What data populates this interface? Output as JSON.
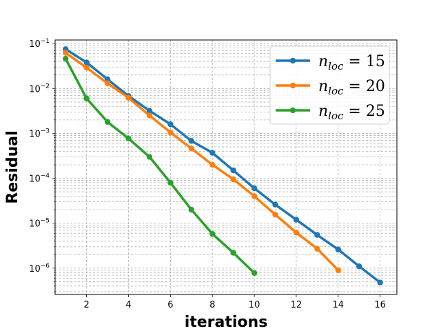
{
  "chart_data": {
    "type": "line",
    "xlabel": "iterations",
    "ylabel": "Residual",
    "xlim": [
      0.5,
      16.8
    ],
    "ylim": [
      2.6e-07,
      0.12
    ],
    "yscale": "log",
    "grid": true,
    "legend_position": "top-right",
    "xticks": [
      2,
      4,
      6,
      8,
      10,
      12,
      14,
      16
    ],
    "xtick_labels": [
      "2",
      "4",
      "6",
      "8",
      "10",
      "12",
      "14",
      "16"
    ],
    "yticks": [
      1e-06,
      1e-05,
      0.0001,
      0.001,
      0.01,
      0.1
    ],
    "ytick_labels": [
      {
        "base": "10",
        "exp": "−6"
      },
      {
        "base": "10",
        "exp": "−5"
      },
      {
        "base": "10",
        "exp": "−4"
      },
      {
        "base": "10",
        "exp": "−3"
      },
      {
        "base": "10",
        "exp": "−2"
      },
      {
        "base": "10",
        "exp": "−1"
      }
    ],
    "series": [
      {
        "label_var": "n",
        "label_sub": "loc",
        "label_rest": " = 15",
        "color": "#1f77b4",
        "x": [
          1,
          2,
          3,
          4,
          5,
          6,
          7,
          8,
          9,
          10,
          11,
          12,
          13,
          14,
          15,
          16
        ],
        "y": [
          0.075,
          0.038,
          0.016,
          0.0068,
          0.0032,
          0.0016,
          0.00068,
          0.00037,
          0.00015,
          6e-05,
          2.6e-05,
          1.2e-05,
          5.5e-06,
          2.6e-06,
          1.1e-06,
          4.8e-07
        ]
      },
      {
        "label_var": "n",
        "label_sub": "loc",
        "label_rest": " = 20",
        "color": "#ff7f0e",
        "x": [
          1,
          2,
          3,
          4,
          5,
          6,
          7,
          8,
          9,
          10,
          11,
          12,
          13,
          14
        ],
        "y": [
          0.062,
          0.029,
          0.013,
          0.0062,
          0.0025,
          0.00105,
          0.00046,
          0.0002,
          9.5e-05,
          4e-05,
          1.55e-05,
          6.2e-06,
          2.7e-06,
          9e-07
        ]
      },
      {
        "label_var": "n",
        "label_sub": "loc",
        "label_rest": " = 25",
        "color": "#2ca02c",
        "x": [
          1,
          2,
          3,
          4,
          5,
          6,
          7,
          8,
          9,
          10
        ],
        "y": [
          0.046,
          0.006,
          0.0018,
          0.00077,
          0.0003,
          8e-05,
          2e-05,
          5.8e-06,
          2.2e-06,
          7.8e-07
        ]
      }
    ]
  }
}
